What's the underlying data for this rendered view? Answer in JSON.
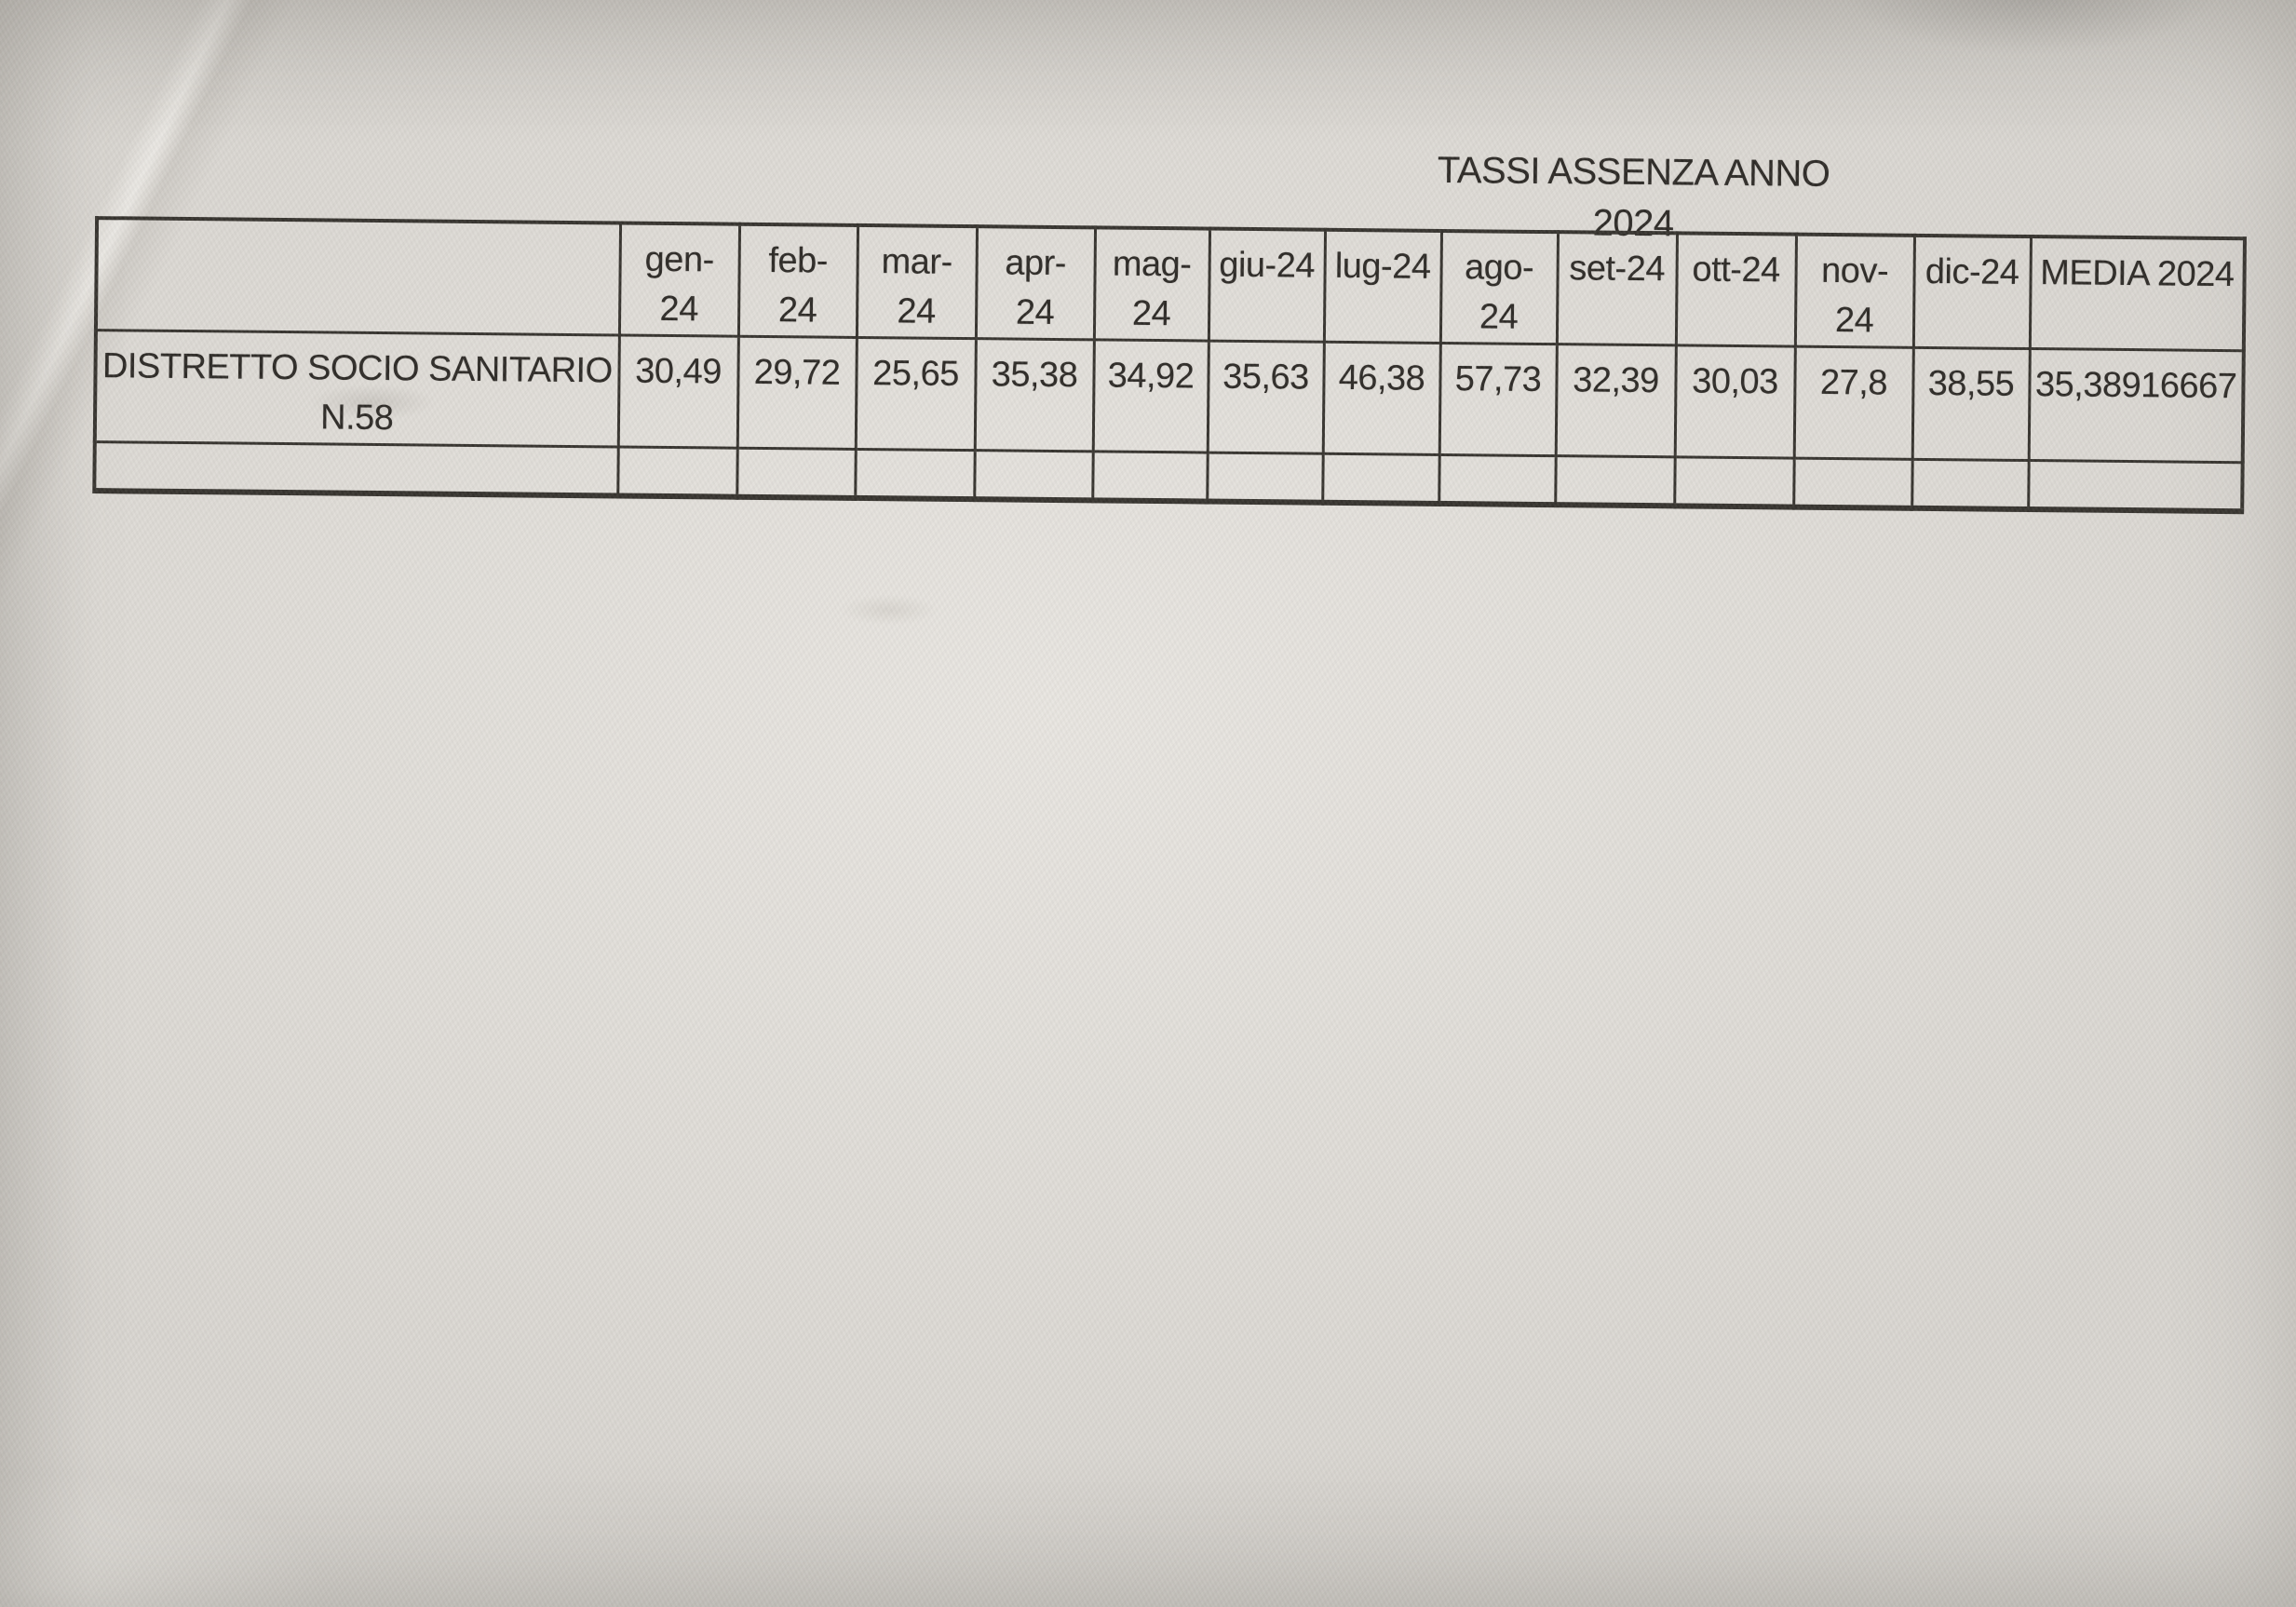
{
  "paper": {
    "background_color": "#d8d5d0",
    "ink_color": "#2e2b27"
  },
  "doc": {
    "title": {
      "line1": "TASSI ASSENZA ANNO",
      "line2": "2024"
    },
    "table": {
      "head": [
        "",
        "gen-\n24",
        "feb-\n24",
        "mar-\n24",
        "apr-\n24",
        "mag-\n24",
        "giu-24",
        "lug-24",
        "ago-\n24",
        "set-24",
        "ott-24",
        "nov-\n24",
        "dic-24",
        "MEDIA 2024"
      ],
      "rows": [
        [
          "DISTRETTO SOCIO SANITARIO\nN.58",
          "30,49",
          "29,72",
          "25,65",
          "35,38",
          "34,92",
          "35,63",
          "46,38",
          "57,73",
          "32,39",
          "30,03",
          "27,8",
          "38,55",
          "35,38916667"
        ],
        [
          "",
          "",
          "",
          "",
          "",
          "",
          "",
          "",
          "",
          "",
          "",
          "",
          "",
          ""
        ]
      ]
    }
  }
}
